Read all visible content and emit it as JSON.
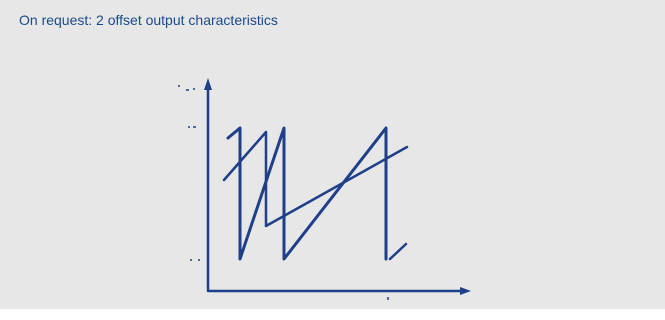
{
  "heading": "On request: 2 offset output characteristics",
  "colors": {
    "background": "#e6e7e6",
    "heading_text": "#1b4a8c",
    "diagram_stroke": "#1f3f8a"
  },
  "diagram": {
    "description_type": "sawtooth",
    "output_count": 2
  }
}
